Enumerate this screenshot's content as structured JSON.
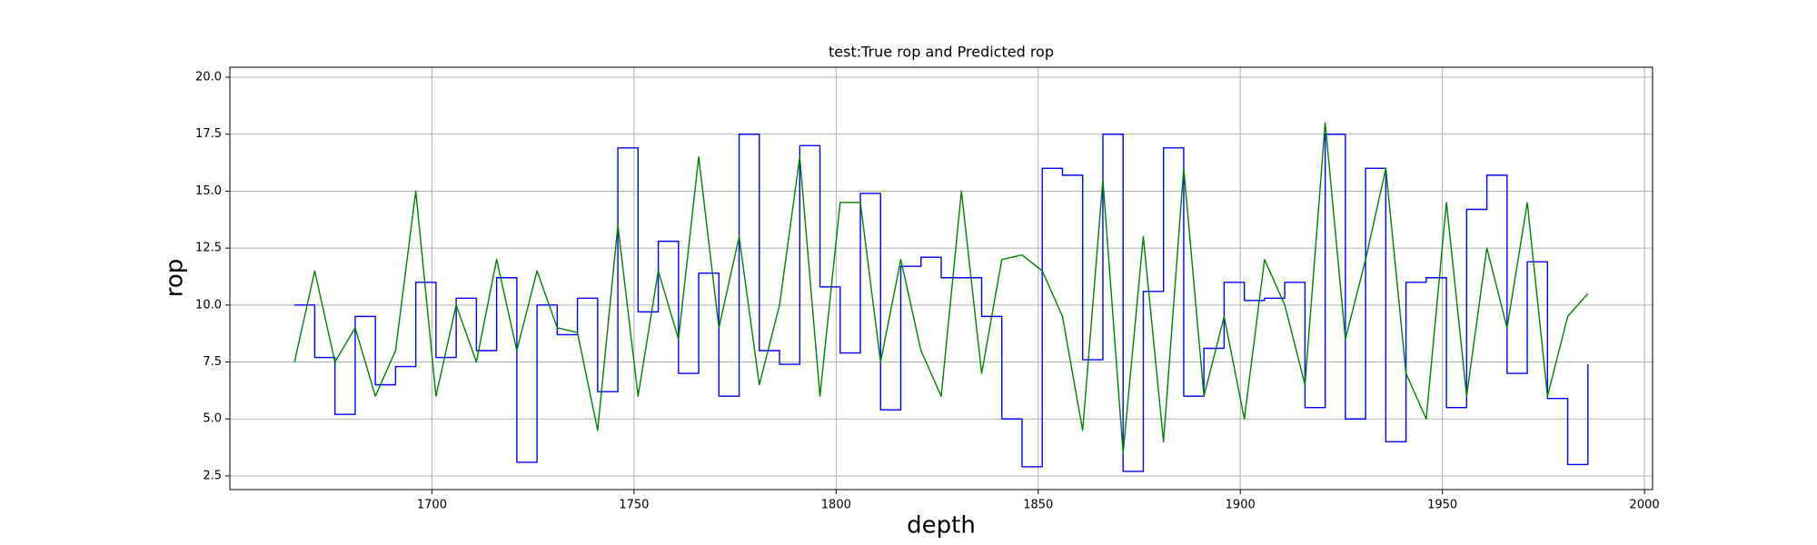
{
  "chart_data": {
    "type": "line",
    "title": "test:True rop and Predicted rop",
    "x_label": "depth",
    "y_label": "rop",
    "x": [
      1666,
      1671,
      1676,
      1681,
      1686,
      1691,
      1696,
      1701,
      1706,
      1711,
      1716,
      1721,
      1726,
      1731,
      1736,
      1741,
      1746,
      1751,
      1756,
      1761,
      1766,
      1771,
      1776,
      1781,
      1786,
      1791,
      1796,
      1801,
      1806,
      1811,
      1816,
      1821,
      1826,
      1831,
      1836,
      1841,
      1846,
      1851,
      1856,
      1861,
      1866,
      1871,
      1876,
      1881,
      1886,
      1891,
      1896,
      1901,
      1906,
      1911,
      1916,
      1921,
      1926,
      1931,
      1936,
      1941,
      1946,
      1951,
      1956,
      1961,
      1966,
      1971,
      1976,
      1981,
      1986
    ],
    "series": [
      {
        "color": "#0000ff",
        "drawstyle": "steps-post",
        "values": [
          10.0,
          7.7,
          5.2,
          9.5,
          6.5,
          7.3,
          11.0,
          7.7,
          10.3,
          8.0,
          11.2,
          3.1,
          10.0,
          8.7,
          10.3,
          6.2,
          16.9,
          9.7,
          12.8,
          7.0,
          11.4,
          6.0,
          17.5,
          8.0,
          7.4,
          17.0,
          10.8,
          7.9,
          14.9,
          5.4,
          11.7,
          12.1,
          11.2,
          11.2,
          9.5,
          5.0,
          2.9,
          16.0,
          15.7,
          7.6,
          17.5,
          2.7,
          10.6,
          16.9,
          6.0,
          8.1,
          11.0,
          10.2,
          10.3,
          11.0,
          5.5,
          17.5,
          5.0,
          16.0,
          4.0,
          11.0,
          11.2,
          5.5,
          14.2,
          15.7,
          7.0,
          11.9,
          5.9,
          3.0,
          7.4
        ]
      },
      {
        "color": "#008000",
        "drawstyle": "default",
        "values": [
          7.5,
          11.5,
          7.5,
          9.0,
          6.0,
          8.0,
          15.0,
          6.0,
          10.0,
          7.5,
          12.0,
          8.0,
          11.5,
          9.0,
          8.8,
          4.5,
          13.5,
          6.0,
          11.5,
          8.5,
          16.5,
          9.0,
          13.0,
          6.5,
          10.0,
          16.5,
          6.0,
          14.5,
          14.5,
          7.5,
          12.0,
          8.0,
          6.0,
          15.0,
          7.0,
          12.0,
          12.2,
          11.5,
          9.5,
          4.5,
          15.5,
          3.5,
          13.0,
          4.0,
          16.0,
          6.0,
          9.5,
          5.0,
          12.0,
          10.0,
          6.5,
          18.0,
          8.5,
          12.0,
          16.0,
          7.0,
          5.0,
          14.5,
          6.0,
          12.5,
          9.0,
          14.5,
          6.0,
          9.5,
          10.5
        ]
      }
    ],
    "xlim": [
      1650,
      2002
    ],
    "ylim": [
      1.9,
      20.44
    ],
    "xticks": [
      1700,
      1750,
      1800,
      1850,
      1900,
      1950,
      2000
    ],
    "yticks": [
      2.5,
      {
        "value": 5,
        "label": "5.0"
      },
      7.5,
      {
        "value": 10,
        "label": "10.0"
      },
      12.5,
      {
        "value": 15,
        "label": "15.0"
      },
      17.5,
      {
        "value": 20,
        "label": "20.0"
      }
    ],
    "grid": true
  }
}
